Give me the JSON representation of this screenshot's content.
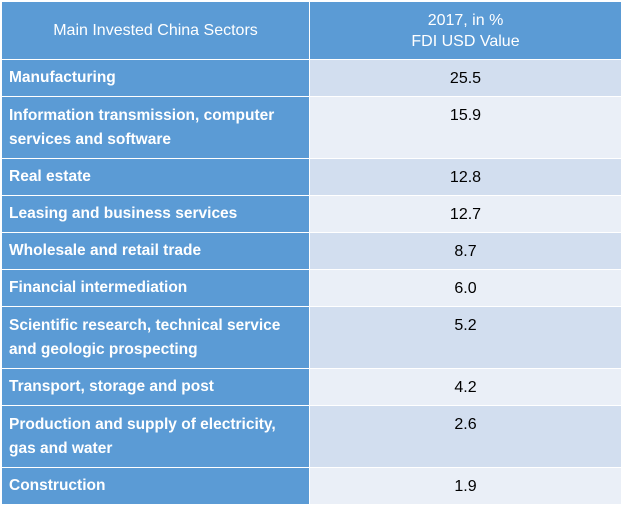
{
  "table": {
    "header": {
      "col1": "Main Invested China Sectors",
      "col2_line1": "2017, in %",
      "col2_line2": "FDI USD Value"
    },
    "rows": [
      {
        "sector": "Manufacturing",
        "value": "25.5"
      },
      {
        "sector": "Information transmission, computer services and software",
        "value": "15.9"
      },
      {
        "sector": "Real estate",
        "value": "12.8"
      },
      {
        "sector": "Leasing and business services",
        "value": "12.7"
      },
      {
        "sector": "Wholesale and retail trade",
        "value": "8.7"
      },
      {
        "sector": "Financial intermediation",
        "value": "6.0"
      },
      {
        "sector": "Scientific research, technical service and geologic prospecting",
        "value": "5.2"
      },
      {
        "sector": "Transport, storage and post",
        "value": "4.2"
      },
      {
        "sector": "Production and supply of electricity, gas and water",
        "value": "2.6"
      },
      {
        "sector": "Construction",
        "value": "1.9"
      }
    ]
  },
  "colors": {
    "header_bg": "#5b9bd5",
    "row_light": "#eaeff7",
    "row_medium": "#d2deef"
  },
  "chart_data": {
    "type": "table",
    "columns": [
      "Main Invested China Sectors",
      "2017, in % FDI USD Value"
    ],
    "categories": [
      "Manufacturing",
      "Information transmission, computer services and software",
      "Real estate",
      "Leasing and business services",
      "Wholesale and retail trade",
      "Financial intermediation",
      "Scientific research, technical service and geologic prospecting",
      "Transport, storage and post",
      "Production and supply of electricity, gas and water",
      "Construction"
    ],
    "values": [
      25.5,
      15.9,
      12.8,
      12.7,
      8.7,
      6.0,
      5.2,
      4.2,
      2.6,
      1.9
    ]
  }
}
